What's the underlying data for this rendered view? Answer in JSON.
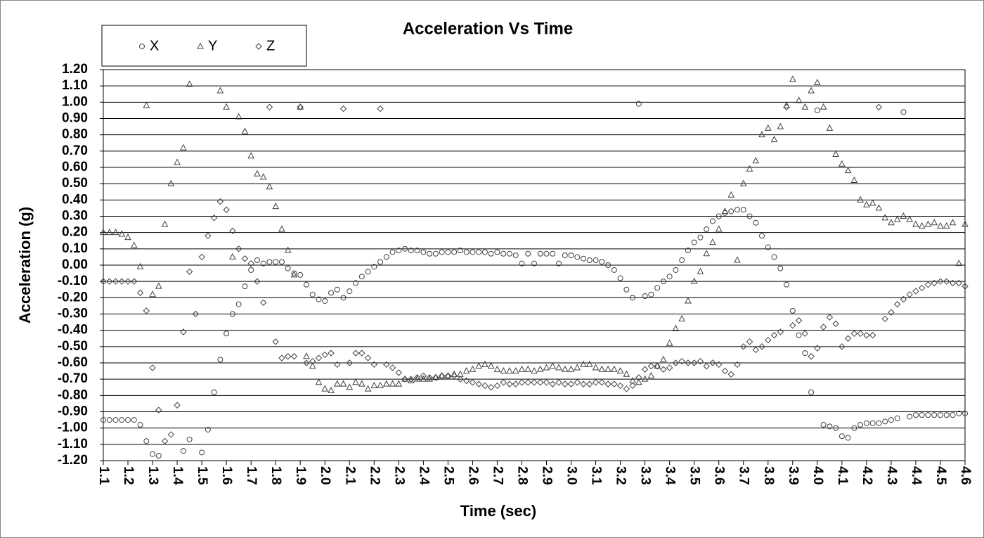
{
  "chart_data": {
    "type": "scatter",
    "title": "Acceleration Vs Time",
    "xlabel": "Time (sec)",
    "ylabel": "Acceleration (g)",
    "xlim": [
      1.1,
      4.6
    ],
    "ylim": [
      -1.2,
      1.2
    ],
    "grid": true,
    "legend": "top-left",
    "xticks": [
      1.1,
      1.2,
      1.3,
      1.4,
      1.5,
      1.6,
      1.7,
      1.8,
      1.9,
      {
        "value": 2,
        "label": "2.0"
      },
      2.1,
      2.2,
      2.3,
      2.4,
      2.5,
      2.6,
      2.7,
      2.8,
      2.9,
      {
        "value": 3,
        "label": "3.0"
      },
      3.1,
      3.2,
      3.3,
      3.4,
      3.5,
      3.6,
      3.7,
      3.8,
      3.9,
      {
        "value": 4,
        "label": "4.0"
      },
      4.1,
      4.2,
      4.3,
      4.4,
      4.5,
      4.6
    ],
    "yticks": [
      {
        "value": -1.2,
        "label": "-1.20"
      },
      {
        "value": -1.1,
        "label": "-1.10"
      },
      {
        "value": -1,
        "label": "-1.00"
      },
      {
        "value": -0.9,
        "label": "-0.90"
      },
      {
        "value": -0.8,
        "label": "-0.80"
      },
      {
        "value": -0.7,
        "label": "-0.70"
      },
      {
        "value": -0.6,
        "label": "-0.60"
      },
      {
        "value": -0.5,
        "label": "-0.50"
      },
      {
        "value": -0.4,
        "label": "-0.40"
      },
      {
        "value": -0.3,
        "label": "-0.30"
      },
      {
        "value": -0.2,
        "label": "-0.20"
      },
      {
        "value": -0.1,
        "label": "-0.10"
      },
      {
        "value": 0,
        "label": "0.00"
      },
      {
        "value": 0.1,
        "label": "0.10"
      },
      {
        "value": 0.2,
        "label": "0.20"
      },
      {
        "value": 0.3,
        "label": "0.30"
      },
      {
        "value": 0.4,
        "label": "0.40"
      },
      {
        "value": 0.5,
        "label": "0.50"
      },
      {
        "value": 0.6,
        "label": "0.60"
      },
      {
        "value": 0.7,
        "label": "0.70"
      },
      {
        "value": 0.8,
        "label": "0.80"
      },
      {
        "value": 0.9,
        "label": "0.90"
      },
      {
        "value": 1,
        "label": "1.00"
      },
      {
        "value": 1.1,
        "label": "1.10"
      },
      {
        "value": 1.2,
        "label": "1.20"
      }
    ],
    "x": [
      1.1,
      1.125,
      1.15,
      1.175,
      1.2,
      1.225,
      1.25,
      1.275,
      1.3,
      1.325,
      1.35,
      1.375,
      1.4,
      1.425,
      1.45,
      1.475,
      1.5,
      1.525,
      1.55,
      1.575,
      1.6,
      1.625,
      1.65,
      1.675,
      1.7,
      1.725,
      1.75,
      1.775,
      1.8,
      1.825,
      1.85,
      1.875,
      1.9,
      1.925,
      1.95,
      1.975,
      2.0,
      2.025,
      2.05,
      2.075,
      2.1,
      2.125,
      2.15,
      2.175,
      2.2,
      2.225,
      2.25,
      2.275,
      2.3,
      2.325,
      2.35,
      2.375,
      2.4,
      2.425,
      2.45,
      2.475,
      2.5,
      2.525,
      2.55,
      2.575,
      2.6,
      2.625,
      2.65,
      2.675,
      2.7,
      2.725,
      2.75,
      2.775,
      2.8,
      2.825,
      2.85,
      2.875,
      2.9,
      2.925,
      2.95,
      2.975,
      3.0,
      3.025,
      3.05,
      3.075,
      3.1,
      3.125,
      3.15,
      3.175,
      3.2,
      3.225,
      3.25,
      3.275,
      3.3,
      3.325,
      3.35,
      3.375,
      3.4,
      3.425,
      3.45,
      3.475,
      3.5,
      3.525,
      3.55,
      3.575,
      3.6,
      3.625,
      3.65,
      3.675,
      3.7,
      3.725,
      3.75,
      3.775,
      3.8,
      3.825,
      3.85,
      3.875,
      3.9,
      3.925,
      3.95,
      3.975,
      4.0,
      4.025,
      4.05,
      4.075,
      4.1,
      4.125,
      4.15,
      4.175,
      4.2,
      4.225,
      4.25,
      4.275,
      4.3,
      4.325,
      4.35,
      4.375,
      4.4,
      4.425,
      4.45,
      4.475,
      4.5,
      4.525,
      4.55,
      4.575,
      4.6
    ],
    "series": [
      {
        "name": "X",
        "color": "#404040",
        "marker": "circle",
        "values": [
          -0.95,
          -0.95,
          -0.95,
          -0.95,
          -0.95,
          -0.95,
          -0.98,
          -1.08,
          -1.16,
          -1.17,
          null,
          null,
          null,
          -1.14,
          -1.07,
          null,
          -1.15,
          -1.01,
          -0.78,
          -0.58,
          -0.42,
          -0.3,
          -0.24,
          -0.13,
          -0.03,
          0.03,
          0.01,
          0.02,
          0.02,
          0.02,
          -0.02,
          -0.05,
          -0.06,
          -0.12,
          -0.18,
          -0.21,
          -0.22,
          -0.17,
          -0.15,
          -0.2,
          -0.16,
          -0.11,
          -0.07,
          -0.04,
          -0.01,
          0.02,
          0.05,
          0.08,
          0.09,
          0.1,
          0.09,
          0.09,
          0.08,
          0.07,
          0.07,
          0.08,
          0.08,
          0.08,
          0.09,
          0.08,
          0.08,
          0.08,
          0.08,
          0.07,
          0.08,
          0.07,
          0.07,
          0.06,
          0.01,
          0.07,
          0.01,
          0.07,
          0.07,
          0.07,
          0.01,
          0.06,
          0.06,
          0.05,
          0.04,
          0.03,
          0.03,
          0.02,
          0.0,
          -0.03,
          -0.08,
          -0.15,
          -0.2,
          0.99,
          -0.19,
          -0.18,
          -0.14,
          -0.1,
          -0.07,
          -0.03,
          0.03,
          0.09,
          0.14,
          0.17,
          0.22,
          0.27,
          0.3,
          0.32,
          0.33,
          0.34,
          0.34,
          0.3,
          0.26,
          0.18,
          0.11,
          0.05,
          -0.02,
          -0.12,
          -0.28,
          -0.43,
          -0.54,
          -0.78,
          0.95,
          -0.98,
          -0.99,
          -1.0,
          -1.05,
          -1.06,
          -1.0,
          -0.98,
          -0.97,
          -0.97,
          -0.97,
          -0.96,
          -0.95,
          -0.94,
          0.94,
          -0.93,
          -0.92,
          -0.92,
          -0.92,
          -0.92,
          -0.92,
          -0.92,
          -0.92,
          -0.91,
          -0.91
        ]
      },
      {
        "name": "Y",
        "color": "#404040",
        "marker": "triangle",
        "values": [
          0.2,
          0.2,
          0.2,
          0.19,
          0.17,
          0.12,
          -0.01,
          0.98,
          -0.18,
          -0.13,
          0.25,
          0.5,
          0.63,
          0.72,
          1.11,
          null,
          null,
          null,
          null,
          1.07,
          0.97,
          0.05,
          0.91,
          0.82,
          0.67,
          0.56,
          0.54,
          0.48,
          0.36,
          0.22,
          0.09,
          -0.06,
          0.97,
          -0.56,
          -0.62,
          -0.72,
          -0.76,
          -0.77,
          -0.73,
          -0.73,
          -0.75,
          -0.72,
          -0.73,
          -0.76,
          -0.74,
          -0.74,
          -0.73,
          -0.73,
          -0.73,
          -0.7,
          -0.71,
          -0.7,
          -0.7,
          -0.7,
          -0.69,
          -0.68,
          -0.68,
          -0.67,
          -0.67,
          -0.65,
          -0.64,
          -0.62,
          -0.61,
          -0.62,
          -0.64,
          -0.65,
          -0.65,
          -0.65,
          -0.64,
          -0.64,
          -0.65,
          -0.64,
          -0.63,
          -0.62,
          -0.63,
          -0.64,
          -0.64,
          -0.63,
          -0.61,
          -0.61,
          -0.63,
          -0.64,
          -0.64,
          -0.64,
          -0.65,
          -0.67,
          -0.71,
          -0.72,
          -0.7,
          -0.68,
          -0.62,
          -0.58,
          -0.48,
          -0.39,
          -0.33,
          -0.22,
          -0.1,
          -0.04,
          0.07,
          0.14,
          0.22,
          0.33,
          0.43,
          0.03,
          0.5,
          0.59,
          0.64,
          0.8,
          0.84,
          0.77,
          0.85,
          0.98,
          1.14,
          1.01,
          0.97,
          1.07,
          1.12,
          0.97,
          0.84,
          0.68,
          0.62,
          0.58,
          0.52,
          0.4,
          0.37,
          0.38,
          0.35,
          0.29,
          0.26,
          0.28,
          0.3,
          0.28,
          0.25,
          0.24,
          0.25,
          0.26,
          0.24,
          0.24,
          0.26,
          0.01,
          0.25
        ]
      },
      {
        "name": "Z",
        "color": "#404040",
        "marker": "diamond",
        "values": [
          -0.1,
          -0.1,
          -0.1,
          -0.1,
          -0.1,
          -0.1,
          -0.17,
          -0.28,
          -0.63,
          -0.89,
          -1.08,
          -1.04,
          -0.86,
          -0.41,
          -0.04,
          -0.3,
          0.05,
          0.18,
          0.29,
          0.39,
          0.34,
          0.21,
          0.1,
          0.04,
          0.01,
          -0.1,
          -0.23,
          0.97,
          -0.47,
          -0.57,
          -0.56,
          -0.56,
          0.97,
          -0.6,
          -0.59,
          -0.57,
          -0.55,
          -0.54,
          -0.61,
          0.96,
          -0.6,
          -0.54,
          -0.54,
          -0.57,
          -0.61,
          0.96,
          -0.61,
          -0.63,
          -0.66,
          -0.7,
          -0.7,
          -0.69,
          -0.68,
          -0.69,
          -0.69,
          -0.68,
          -0.68,
          -0.68,
          -0.7,
          -0.71,
          -0.72,
          -0.73,
          -0.74,
          -0.75,
          -0.74,
          -0.72,
          -0.73,
          -0.73,
          -0.72,
          -0.72,
          -0.72,
          -0.72,
          -0.72,
          -0.73,
          -0.72,
          -0.73,
          -0.73,
          -0.72,
          -0.73,
          -0.73,
          -0.72,
          -0.72,
          -0.73,
          -0.73,
          -0.74,
          -0.76,
          -0.74,
          -0.69,
          -0.64,
          -0.62,
          -0.62,
          -0.64,
          -0.63,
          -0.6,
          -0.59,
          -0.6,
          -0.6,
          -0.59,
          -0.62,
          -0.6,
          -0.61,
          -0.65,
          -0.67,
          -0.61,
          -0.5,
          -0.47,
          -0.52,
          -0.5,
          -0.46,
          -0.43,
          -0.41,
          0.97,
          -0.37,
          -0.34,
          -0.42,
          -0.56,
          -0.51,
          -0.38,
          -0.32,
          -0.36,
          -0.5,
          -0.45,
          -0.42,
          -0.42,
          -0.43,
          -0.43,
          0.97,
          -0.33,
          -0.29,
          -0.24,
          -0.21,
          -0.18,
          -0.16,
          -0.14,
          -0.12,
          -0.11,
          -0.1,
          -0.1,
          -0.11,
          -0.11,
          -0.13
        ]
      }
    ]
  }
}
